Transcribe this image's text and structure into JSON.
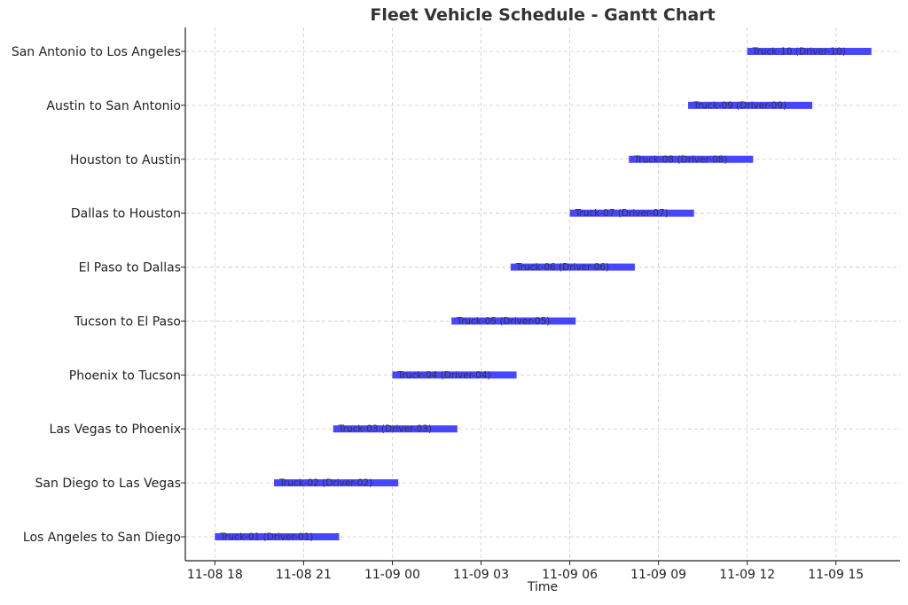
{
  "chart_data": {
    "type": "gantt",
    "title": "Fleet Vehicle Schedule - Gantt Chart",
    "xlabel": "Time",
    "ylabel": "",
    "grid": true,
    "bar_color": "#3333ff",
    "x_range": [
      "2023-11-08 17:00",
      "2023-11-09 17:10"
    ],
    "x_ticks": [
      {
        "time": "2023-11-08 18:00",
        "label": "11-08 18"
      },
      {
        "time": "2023-11-08 21:00",
        "label": "11-08 21"
      },
      {
        "time": "2023-11-09 00:00",
        "label": "11-09 00"
      },
      {
        "time": "2023-11-09 03:00",
        "label": "11-09 03"
      },
      {
        "time": "2023-11-09 06:00",
        "label": "11-09 06"
      },
      {
        "time": "2023-11-09 09:00",
        "label": "11-09 09"
      },
      {
        "time": "2023-11-09 12:00",
        "label": "11-09 12"
      },
      {
        "time": "2023-11-09 15:00",
        "label": "11-09 15"
      }
    ],
    "tasks": [
      {
        "route": "Los Angeles to San Diego",
        "label": "Truck-01 (Driver-01)",
        "start": "2023-11-08 18:00",
        "end": "2023-11-08 22:12"
      },
      {
        "route": "San Diego to Las Vegas",
        "label": "Truck-02 (Driver-02)",
        "start": "2023-11-08 20:00",
        "end": "2023-11-09 00:12"
      },
      {
        "route": "Las Vegas to Phoenix",
        "label": "Truck-03 (Driver-03)",
        "start": "2023-11-08 22:00",
        "end": "2023-11-09 02:12"
      },
      {
        "route": "Phoenix to Tucson",
        "label": "Truck-04 (Driver-04)",
        "start": "2023-11-09 00:00",
        "end": "2023-11-09 04:12"
      },
      {
        "route": "Tucson to El Paso",
        "label": "Truck-05 (Driver-05)",
        "start": "2023-11-09 02:00",
        "end": "2023-11-09 06:12"
      },
      {
        "route": "El Paso to Dallas",
        "label": "Truck-06 (Driver-06)",
        "start": "2023-11-09 04:00",
        "end": "2023-11-09 08:12"
      },
      {
        "route": "Dallas to Houston",
        "label": "Truck-07 (Driver-07)",
        "start": "2023-11-09 06:00",
        "end": "2023-11-09 10:12"
      },
      {
        "route": "Houston to Austin",
        "label": "Truck-08 (Driver-08)",
        "start": "2023-11-09 08:00",
        "end": "2023-11-09 12:12"
      },
      {
        "route": "Austin to San Antonio",
        "label": "Truck-09 (Driver-09)",
        "start": "2023-11-09 10:00",
        "end": "2023-11-09 14:12"
      },
      {
        "route": "San Antonio to Los Angeles",
        "label": "Truck-10 (Driver-10)",
        "start": "2023-11-09 12:00",
        "end": "2023-11-09 16:12"
      }
    ]
  }
}
